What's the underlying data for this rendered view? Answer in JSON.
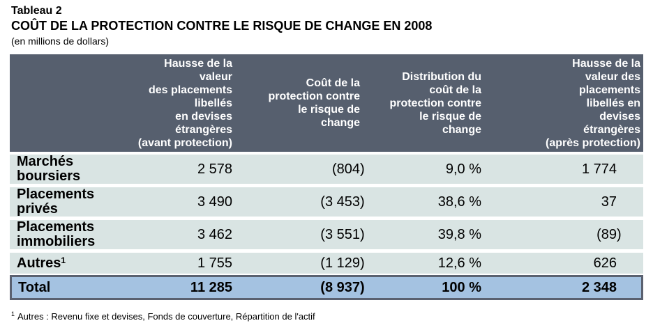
{
  "page": {
    "label": "Tableau 2",
    "title": "COÛT DE LA PROTECTION CONTRE LE RISQUE DE CHANGE EN 2008",
    "subtitle": "(en millions de dollars)",
    "footnote_sup": "1",
    "footnote_text": "Autres : Revenu fixe et devises, Fonds de couverture, Répartition de l'actif"
  },
  "table": {
    "columns": [
      {
        "key": "row-label",
        "header": ""
      },
      {
        "key": "avant-protection",
        "header": "Hausse de la\nvaleur\ndes placements\nlibellés\nen devises\nétrangères\n(avant protection)"
      },
      {
        "key": "cout-protection",
        "header": "Coût de la\nprotection contre\nle risque de\nchange"
      },
      {
        "key": "distribution-cout",
        "header": "Distribution du\ncoût de la\nprotection contre\nle risque de\nchange"
      },
      {
        "key": "apres-protection",
        "header": "Hausse de la\nvaleur des\nplacements\nlibellés en\ndevises\nétrangères\n(après protection)"
      }
    ],
    "rows": [
      {
        "label": "Marchés\nboursiers",
        "values": [
          "2 578",
          "(804)",
          "9,0 %",
          "1 774"
        ]
      },
      {
        "label": "Placements\nprivés",
        "values": [
          "3 490",
          "(3 453)",
          "38,6 %",
          "37"
        ]
      },
      {
        "label": "Placements\nimmobiliers",
        "values": [
          "3 462",
          "(3 551)",
          "39,8 %",
          "(89)"
        ]
      },
      {
        "label": "Autres",
        "label_sup": "1",
        "values": [
          "1 755",
          "(1 129)",
          "12,6 %",
          "626"
        ]
      }
    ],
    "total": {
      "label": "Total",
      "values": [
        "11 285",
        "(8 937)",
        "100 %",
        "2 348"
      ]
    }
  },
  "colors": {
    "header_bg": "#565F6E",
    "header_text": "#FFFFFF",
    "row_bg": "#D9E4E3",
    "total_bg": "#A4C2E1",
    "total_border": "#5A6170",
    "text": "#000000"
  }
}
